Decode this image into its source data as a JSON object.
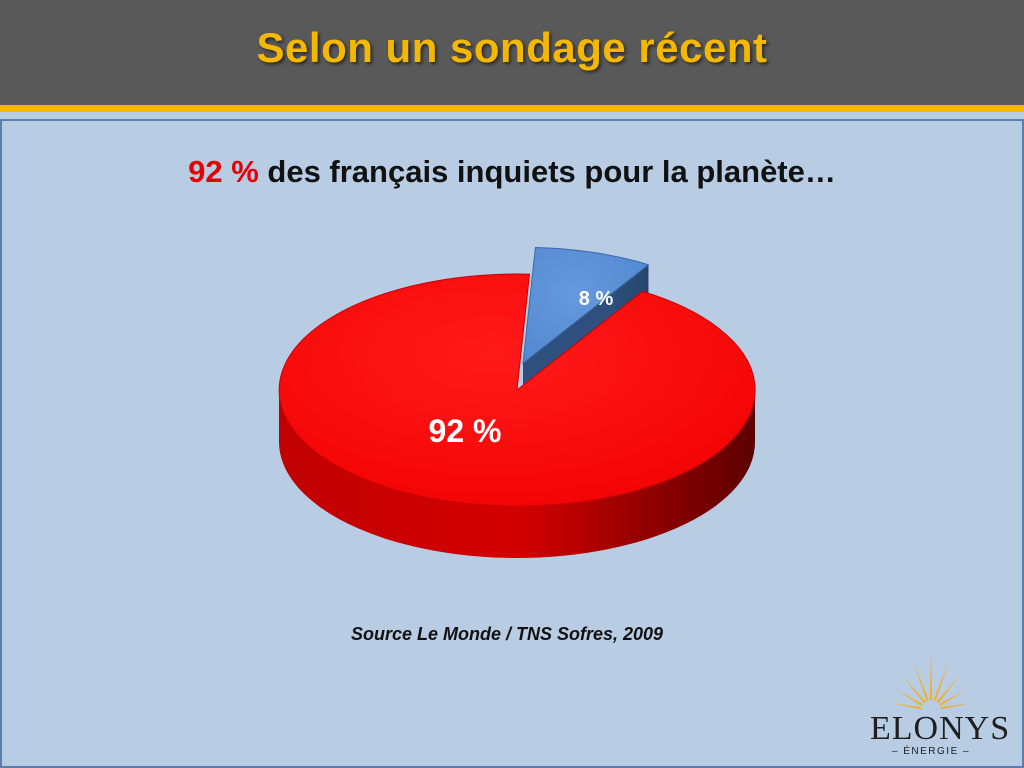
{
  "slide": {
    "title": "Selon un sondage récent",
    "subtitle_highlight": "92 %",
    "subtitle_text": " des français inquiets pour la planète…",
    "source": "Source Le Monde / TNS Sofres, 2009"
  },
  "chart_data": {
    "type": "pie",
    "style": "3d-exploded",
    "title": "",
    "slices": [
      {
        "label": "92 %",
        "value": 92,
        "color": "#ff0000"
      },
      {
        "label": "8 %",
        "value": 8,
        "color": "#558ed5"
      }
    ]
  },
  "logo": {
    "name": "ELONYS",
    "tagline": "– ÉNERGIE –",
    "icon": "sunburst-icon",
    "colors": {
      "rays": "#f0b030",
      "text": "#1f1f1f"
    }
  },
  "theme": {
    "header_bg": "#595959",
    "accent": "#f5b800",
    "background": "#b8cce4",
    "highlight": "#e60000"
  }
}
